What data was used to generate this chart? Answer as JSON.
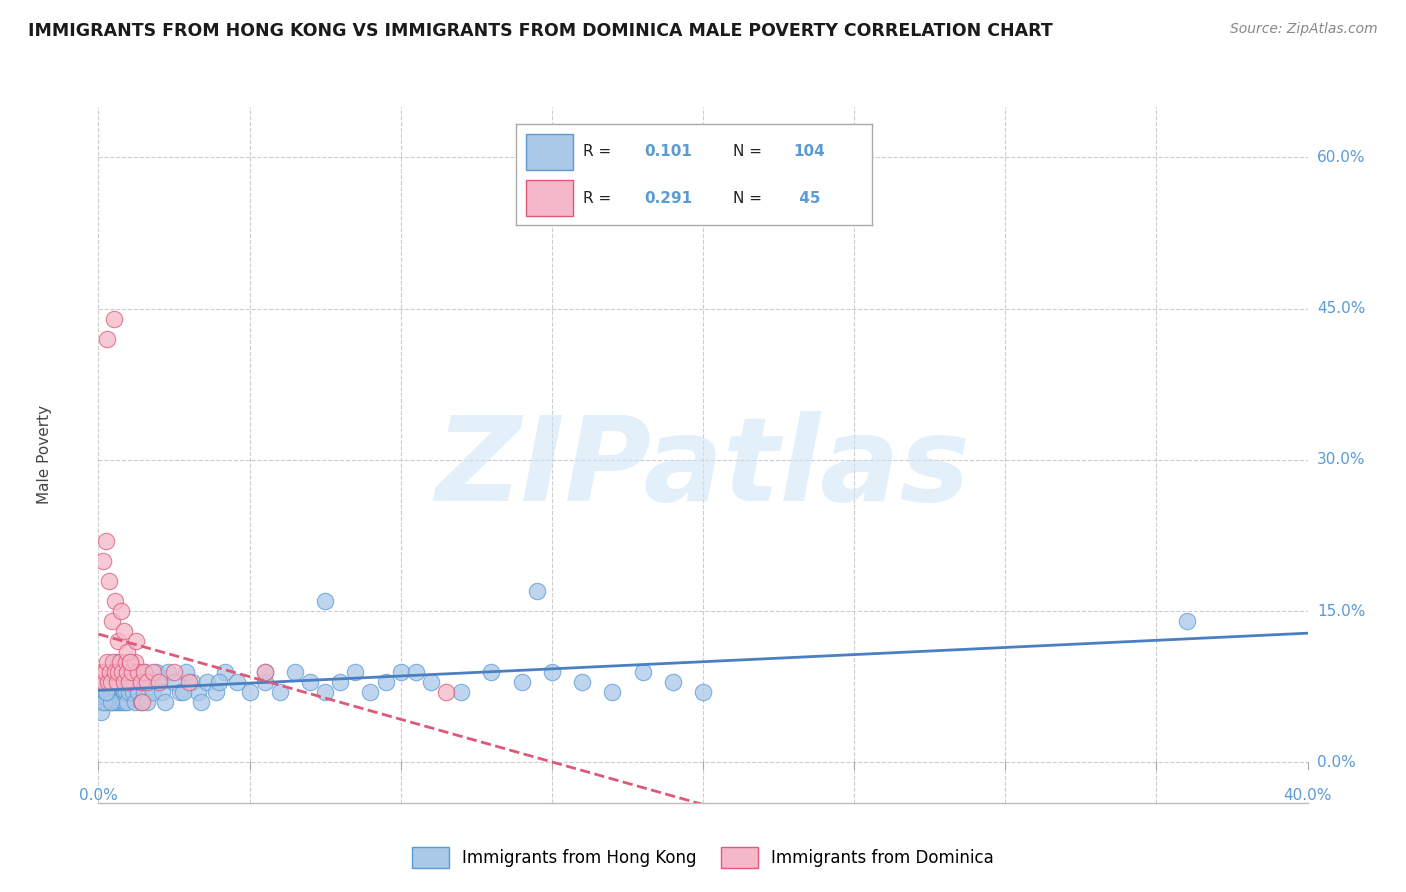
{
  "title": "IMMIGRANTS FROM HONG KONG VS IMMIGRANTS FROM DOMINICA MALE POVERTY CORRELATION CHART",
  "source": "Source: ZipAtlas.com",
  "ylabel": "Male Poverty",
  "xlim": [
    0.0,
    40.0
  ],
  "ylim": [
    -4.0,
    65.0
  ],
  "ytick_vals": [
    0.0,
    15.0,
    30.0,
    45.0,
    60.0
  ],
  "xtick_vals": [
    0.0,
    5.0,
    10.0,
    15.0,
    20.0,
    25.0,
    30.0,
    35.0,
    40.0
  ],
  "watermark_text": "ZIPatlas",
  "series": [
    {
      "label": "Immigrants from Hong Kong",
      "R": 0.101,
      "N": 104,
      "face_color": "#aac8e8",
      "edge_color": "#5b9bd5",
      "line_color": "#4a7fc1",
      "line_style": "solid",
      "scatter_x": [
        0.05,
        0.08,
        0.1,
        0.12,
        0.15,
        0.18,
        0.2,
        0.22,
        0.25,
        0.28,
        0.3,
        0.32,
        0.35,
        0.38,
        0.4,
        0.42,
        0.45,
        0.48,
        0.5,
        0.52,
        0.55,
        0.58,
        0.6,
        0.62,
        0.65,
        0.68,
        0.7,
        0.72,
        0.75,
        0.78,
        0.8,
        0.82,
        0.85,
        0.88,
        0.9,
        0.92,
        0.95,
        0.98,
        1.0,
        1.05,
        1.1,
        1.15,
        1.2,
        1.25,
        1.3,
        1.35,
        1.4,
        1.45,
        1.5,
        1.55,
        1.6,
        1.7,
        1.8,
        1.9,
        2.0,
        2.1,
        2.2,
        2.3,
        2.5,
        2.7,
        2.9,
        3.1,
        3.3,
        3.6,
        3.9,
        4.2,
        4.6,
        5.0,
        5.5,
        6.0,
        6.5,
        7.0,
        7.5,
        8.0,
        8.5,
        9.0,
        9.5,
        10.0,
        11.0,
        12.0,
        13.0,
        14.0,
        15.0,
        16.0,
        17.0,
        18.0,
        19.0,
        20.0,
        0.1,
        0.2,
        0.3,
        0.4,
        2.8,
        3.4,
        4.0,
        5.5,
        7.5,
        10.5,
        14.5,
        36.0,
        0.15,
        0.25,
        0.6,
        0.8
      ],
      "scatter_y": [
        8,
        7,
        6,
        8,
        7,
        6,
        8,
        7,
        6,
        8,
        7,
        6,
        8,
        7,
        6,
        8,
        7,
        6,
        8,
        9,
        7,
        6,
        8,
        7,
        6,
        8,
        7,
        6,
        8,
        7,
        6,
        8,
        7,
        6,
        8,
        7,
        6,
        8,
        7,
        8,
        9,
        7,
        6,
        8,
        7,
        9,
        6,
        8,
        7,
        9,
        6,
        8,
        7,
        9,
        8,
        7,
        6,
        9,
        8,
        7,
        9,
        8,
        7,
        8,
        7,
        9,
        8,
        7,
        8,
        7,
        9,
        8,
        7,
        8,
        9,
        7,
        8,
        9,
        8,
        7,
        9,
        8,
        9,
        8,
        7,
        9,
        8,
        7,
        5,
        6,
        7,
        6,
        7,
        6,
        8,
        9,
        16,
        9,
        17,
        14,
        8,
        7,
        10,
        9
      ]
    },
    {
      "label": "Immigrants from Dominica",
      "R": 0.291,
      "N": 45,
      "face_color": "#f4b8c8",
      "edge_color": "#e05878",
      "line_color": "#e05878",
      "line_style": "dashed",
      "scatter_x": [
        0.08,
        0.12,
        0.18,
        0.22,
        0.28,
        0.32,
        0.38,
        0.42,
        0.48,
        0.55,
        0.6,
        0.65,
        0.72,
        0.78,
        0.85,
        0.9,
        0.95,
        1.0,
        1.05,
        1.1,
        1.2,
        1.3,
        1.4,
        1.5,
        1.6,
        1.8,
        2.0,
        2.5,
        3.0,
        0.15,
        0.25,
        0.35,
        0.45,
        0.55,
        0.65,
        0.75,
        0.85,
        0.95,
        1.05,
        1.25,
        1.45,
        5.5,
        11.5,
        0.3,
        0.5
      ],
      "scatter_y": [
        8,
        9,
        8,
        9,
        10,
        8,
        9,
        8,
        10,
        9,
        8,
        9,
        10,
        9,
        8,
        10,
        9,
        8,
        10,
        9,
        10,
        9,
        8,
        9,
        8,
        9,
        8,
        9,
        8,
        20,
        22,
        18,
        14,
        16,
        12,
        15,
        13,
        11,
        10,
        12,
        6,
        9,
        7,
        42,
        44
      ]
    }
  ]
}
